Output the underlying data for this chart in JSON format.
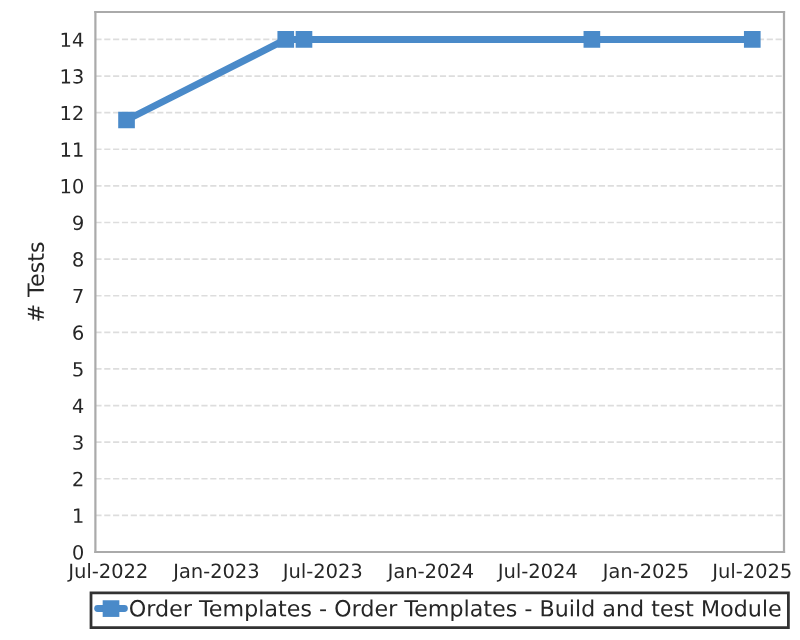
{
  "chart_data": {
    "type": "line",
    "ylabel": "# Tests",
    "series": [
      {
        "name": "Order Templates - Order Templates - Build and test Module",
        "color": "#4a8ac9",
        "x": [
          "2022-08-01",
          "2023-04-29",
          "2023-05-30",
          "2024-10-01",
          "2025-07-01"
        ],
        "values": [
          11.8,
          14,
          14,
          14,
          14
        ]
      }
    ],
    "xlim": [
      "2022-06-09",
      "2025-08-24"
    ],
    "xticks": [
      {
        "value": "2022-07-01",
        "label": "Jul-2022"
      },
      {
        "value": "2023-01-01",
        "label": "Jan-2023"
      },
      {
        "value": "2023-07-01",
        "label": "Jul-2023"
      },
      {
        "value": "2024-01-01",
        "label": "Jan-2024"
      },
      {
        "value": "2024-07-01",
        "label": "Jul-2024"
      },
      {
        "value": "2025-01-01",
        "label": "Jan-2025"
      },
      {
        "value": "2025-07-01",
        "label": "Jul-2025"
      }
    ],
    "ylim": [
      0,
      14.75
    ],
    "yticks": [
      0,
      1,
      2,
      3,
      4,
      5,
      6,
      7,
      8,
      9,
      10,
      11,
      12,
      13,
      14
    ],
    "grid": "y",
    "legend": "bottom",
    "marker": "square",
    "line_style": "solid"
  }
}
